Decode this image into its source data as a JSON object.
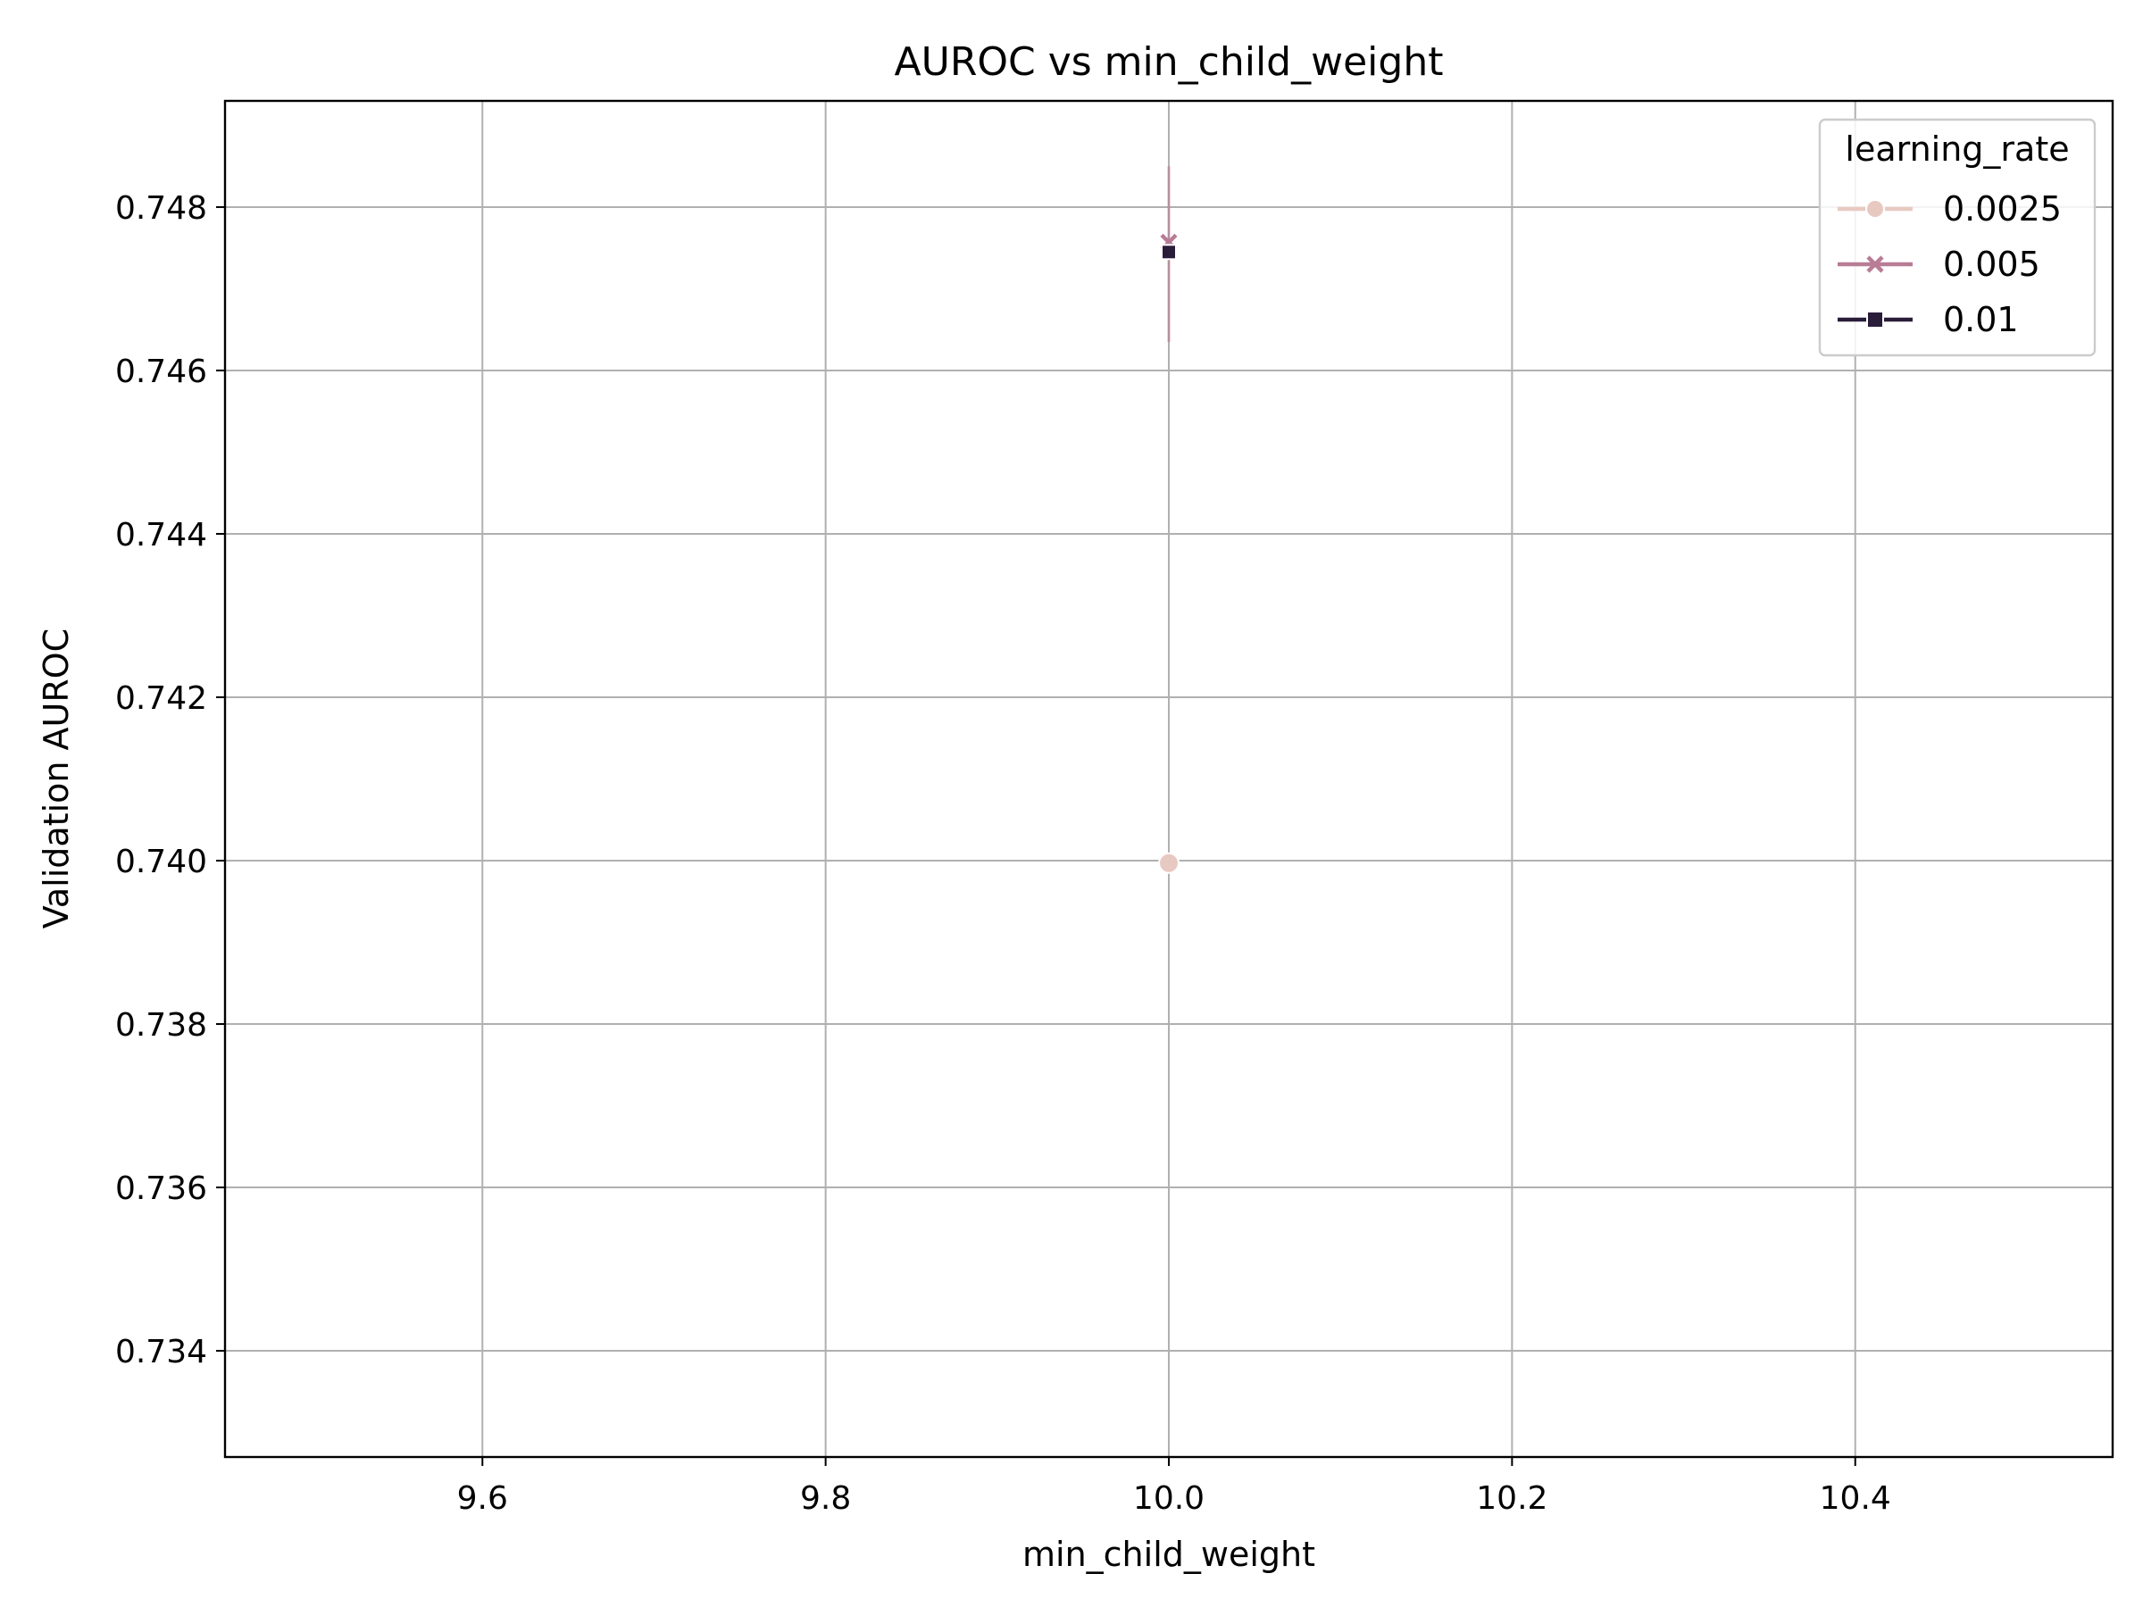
{
  "chart_data": {
    "type": "line",
    "title": "AUROC vs min_child_weight",
    "xlabel": "min_child_weight",
    "ylabel": "Validation AUROC",
    "xlim": [
      9.45,
      10.55
    ],
    "ylim": [
      0.7327,
      0.7493
    ],
    "x_ticks": [
      9.6,
      9.8,
      10.0,
      10.2,
      10.4
    ],
    "x_tick_labels": [
      "9.6",
      "9.8",
      "10.0",
      "10.2",
      "10.4"
    ],
    "y_ticks": [
      0.734,
      0.736,
      0.738,
      0.74,
      0.742,
      0.744,
      0.746,
      0.748
    ],
    "y_tick_labels": [
      "0.734",
      "0.736",
      "0.738",
      "0.740",
      "0.742",
      "0.744",
      "0.746",
      "0.748"
    ],
    "grid": true,
    "legend": {
      "title": "learning_rate",
      "placement": "top-right"
    },
    "series": [
      {
        "name": "0.0025",
        "color": "#e8c9c2",
        "marker": "circle",
        "x": [
          10.0
        ],
        "y": [
          0.73997
        ]
      },
      {
        "name": "0.005",
        "color": "#b87c95",
        "marker": "x",
        "x": [
          10.0
        ],
        "y": [
          0.74757
        ],
        "err_low": [
          0.74635
        ],
        "err_high": [
          0.7485
        ]
      },
      {
        "name": "0.01",
        "color": "#2a1d3a",
        "marker": "square",
        "x": [
          10.0
        ],
        "y": [
          0.74745
        ]
      }
    ]
  }
}
